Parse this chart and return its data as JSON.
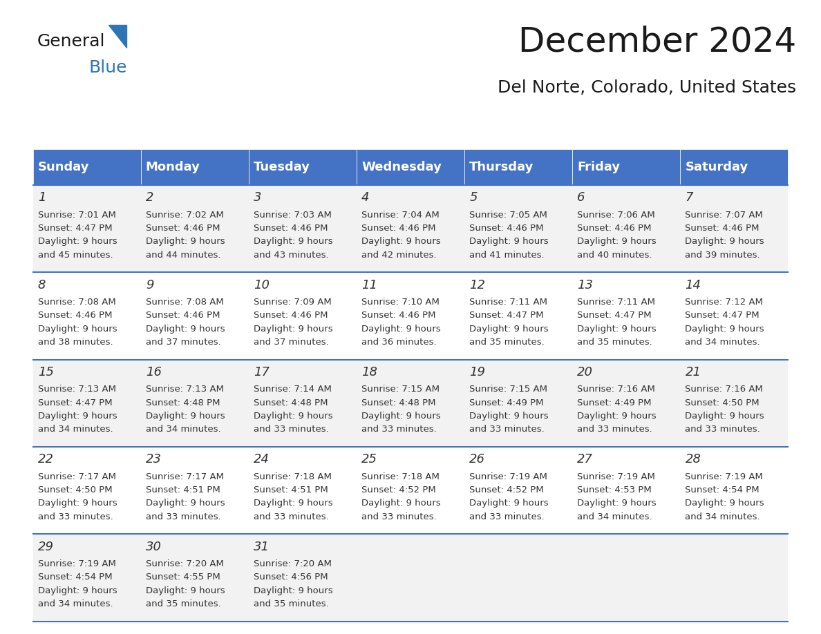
{
  "title": "December 2024",
  "subtitle": "Del Norte, Colorado, United States",
  "header_color": "#4472C4",
  "header_text_color": "#FFFFFF",
  "days_of_week": [
    "Sunday",
    "Monday",
    "Tuesday",
    "Wednesday",
    "Thursday",
    "Friday",
    "Saturday"
  ],
  "cell_bg_even": "#F2F2F2",
  "cell_bg_odd": "#FFFFFF",
  "border_color": "#4472C4",
  "day_number_color": "#333333",
  "cell_text_color": "#333333",
  "calendar_data": [
    [
      {
        "day": 1,
        "sunrise": "7:01 AM",
        "sunset": "4:47 PM",
        "daylight": "9 hours and 45 minutes."
      },
      {
        "day": 2,
        "sunrise": "7:02 AM",
        "sunset": "4:46 PM",
        "daylight": "9 hours and 44 minutes."
      },
      {
        "day": 3,
        "sunrise": "7:03 AM",
        "sunset": "4:46 PM",
        "daylight": "9 hours and 43 minutes."
      },
      {
        "day": 4,
        "sunrise": "7:04 AM",
        "sunset": "4:46 PM",
        "daylight": "9 hours and 42 minutes."
      },
      {
        "day": 5,
        "sunrise": "7:05 AM",
        "sunset": "4:46 PM",
        "daylight": "9 hours and 41 minutes."
      },
      {
        "day": 6,
        "sunrise": "7:06 AM",
        "sunset": "4:46 PM",
        "daylight": "9 hours and 40 minutes."
      },
      {
        "day": 7,
        "sunrise": "7:07 AM",
        "sunset": "4:46 PM",
        "daylight": "9 hours and 39 minutes."
      }
    ],
    [
      {
        "day": 8,
        "sunrise": "7:08 AM",
        "sunset": "4:46 PM",
        "daylight": "9 hours and 38 minutes."
      },
      {
        "day": 9,
        "sunrise": "7:08 AM",
        "sunset": "4:46 PM",
        "daylight": "9 hours and 37 minutes."
      },
      {
        "day": 10,
        "sunrise": "7:09 AM",
        "sunset": "4:46 PM",
        "daylight": "9 hours and 37 minutes."
      },
      {
        "day": 11,
        "sunrise": "7:10 AM",
        "sunset": "4:46 PM",
        "daylight": "9 hours and 36 minutes."
      },
      {
        "day": 12,
        "sunrise": "7:11 AM",
        "sunset": "4:47 PM",
        "daylight": "9 hours and 35 minutes."
      },
      {
        "day": 13,
        "sunrise": "7:11 AM",
        "sunset": "4:47 PM",
        "daylight": "9 hours and 35 minutes."
      },
      {
        "day": 14,
        "sunrise": "7:12 AM",
        "sunset": "4:47 PM",
        "daylight": "9 hours and 34 minutes."
      }
    ],
    [
      {
        "day": 15,
        "sunrise": "7:13 AM",
        "sunset": "4:47 PM",
        "daylight": "9 hours and 34 minutes."
      },
      {
        "day": 16,
        "sunrise": "7:13 AM",
        "sunset": "4:48 PM",
        "daylight": "9 hours and 34 minutes."
      },
      {
        "day": 17,
        "sunrise": "7:14 AM",
        "sunset": "4:48 PM",
        "daylight": "9 hours and 33 minutes."
      },
      {
        "day": 18,
        "sunrise": "7:15 AM",
        "sunset": "4:48 PM",
        "daylight": "9 hours and 33 minutes."
      },
      {
        "day": 19,
        "sunrise": "7:15 AM",
        "sunset": "4:49 PM",
        "daylight": "9 hours and 33 minutes."
      },
      {
        "day": 20,
        "sunrise": "7:16 AM",
        "sunset": "4:49 PM",
        "daylight": "9 hours and 33 minutes."
      },
      {
        "day": 21,
        "sunrise": "7:16 AM",
        "sunset": "4:50 PM",
        "daylight": "9 hours and 33 minutes."
      }
    ],
    [
      {
        "day": 22,
        "sunrise": "7:17 AM",
        "sunset": "4:50 PM",
        "daylight": "9 hours and 33 minutes."
      },
      {
        "day": 23,
        "sunrise": "7:17 AM",
        "sunset": "4:51 PM",
        "daylight": "9 hours and 33 minutes."
      },
      {
        "day": 24,
        "sunrise": "7:18 AM",
        "sunset": "4:51 PM",
        "daylight": "9 hours and 33 minutes."
      },
      {
        "day": 25,
        "sunrise": "7:18 AM",
        "sunset": "4:52 PM",
        "daylight": "9 hours and 33 minutes."
      },
      {
        "day": 26,
        "sunrise": "7:19 AM",
        "sunset": "4:52 PM",
        "daylight": "9 hours and 33 minutes."
      },
      {
        "day": 27,
        "sunrise": "7:19 AM",
        "sunset": "4:53 PM",
        "daylight": "9 hours and 34 minutes."
      },
      {
        "day": 28,
        "sunrise": "7:19 AM",
        "sunset": "4:54 PM",
        "daylight": "9 hours and 34 minutes."
      }
    ],
    [
      {
        "day": 29,
        "sunrise": "7:19 AM",
        "sunset": "4:54 PM",
        "daylight": "9 hours and 34 minutes."
      },
      {
        "day": 30,
        "sunrise": "7:20 AM",
        "sunset": "4:55 PM",
        "daylight": "9 hours and 35 minutes."
      },
      {
        "day": 31,
        "sunrise": "7:20 AM",
        "sunset": "4:56 PM",
        "daylight": "9 hours and 35 minutes."
      },
      null,
      null,
      null,
      null
    ]
  ],
  "logo_text_general": "General",
  "logo_text_blue": "Blue",
  "logo_color_general": "#1a1a1a",
  "logo_color_blue": "#2E75B6",
  "logo_triangle_color": "#2E75B6"
}
